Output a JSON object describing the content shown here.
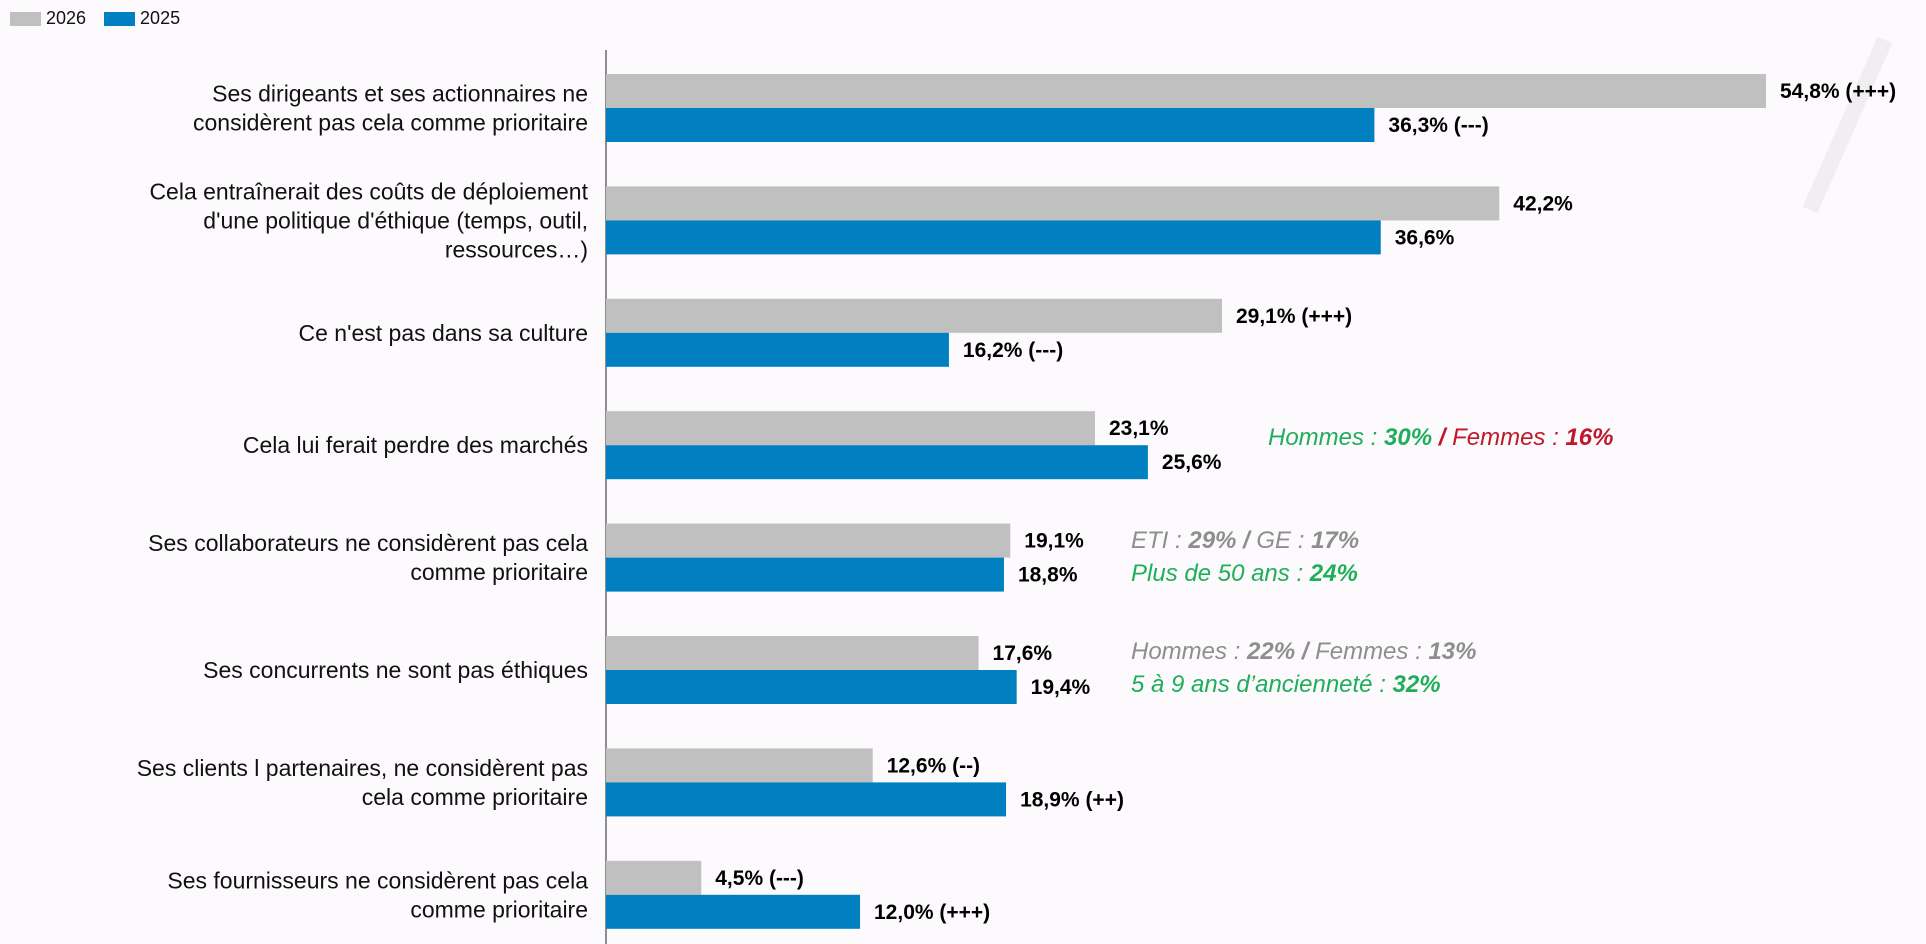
{
  "legend": [
    {
      "label": "2026",
      "color": "#c0c0c0"
    },
    {
      "label": "2025",
      "color": "#0080c0"
    }
  ],
  "chart_data": {
    "type": "bar",
    "orientation": "horizontal",
    "categories": [
      "Ses dirigeants et ses actionnaires ne\nconsidèrent pas cela comme prioritaire",
      "Cela entraînerait des coûts de déploiement\nd'une politique d'éthique (temps, outil,\nressources…)",
      "Ce n'est pas dans sa culture",
      "Cela lui ferait perdre des marchés",
      "Ses collaborateurs ne considèrent pas cela\ncomme prioritaire",
      "Ses concurrents ne sont pas éthiques",
      "Ses clients l partenaires, ne considèrent pas\ncela comme prioritaire",
      "Ses fournisseurs ne considèrent pas cela\ncomme prioritaire"
    ],
    "series": [
      {
        "name": "2026",
        "color": "#c0c0c0",
        "values": [
          54.8,
          42.2,
          29.1,
          23.1,
          19.1,
          17.6,
          12.6,
          4.5
        ],
        "labels": [
          "54,8% (+++)",
          "42,2%",
          "29,1% (+++)",
          "23,1%",
          "19,1%",
          "17,6%",
          "12,6% (--)",
          "4,5% (---)"
        ]
      },
      {
        "name": "2025",
        "color": "#0080c0",
        "values": [
          36.3,
          36.6,
          16.2,
          25.6,
          18.8,
          19.4,
          18.9,
          12.0
        ],
        "labels": [
          "36,3% (---)",
          "36,6%",
          "16,2% (---)",
          "25,6%",
          "18,8%",
          "19,4%",
          "18,9% (++)",
          "12,0% (+++)"
        ]
      }
    ],
    "xlim": [
      0,
      55
    ],
    "grid": false,
    "legend_position": "top-left"
  },
  "annotations": [
    {
      "row": 3,
      "lines": [
        [
          {
            "t": "Hommes : ",
            "c": "#1fae5a",
            "b": false
          },
          {
            "t": "30%",
            "c": "#1fae5a",
            "b": true
          },
          {
            "t": " / ",
            "c": "#c0182b",
            "b": true
          },
          {
            "t": "Femmes : ",
            "c": "#c0182b",
            "b": false
          },
          {
            "t": "16%",
            "c": "#c0182b",
            "b": true
          }
        ]
      ]
    },
    {
      "row": 4,
      "lines": [
        [
          {
            "t": "ETI : ",
            "c": "#8e8e8e",
            "b": false
          },
          {
            "t": "29% / ",
            "c": "#8e8e8e",
            "b": true
          },
          {
            "t": "GE : ",
            "c": "#8e8e8e",
            "b": false
          },
          {
            "t": "17%",
            "c": "#8e8e8e",
            "b": true
          }
        ],
        [
          {
            "t": "Plus de 50 ans : ",
            "c": "#1fae5a",
            "b": false
          },
          {
            "t": "24%",
            "c": "#1fae5a",
            "b": true
          }
        ]
      ]
    },
    {
      "row": 5,
      "lines": [
        [
          {
            "t": "Hommes : ",
            "c": "#8e8e8e",
            "b": false
          },
          {
            "t": "22% / ",
            "c": "#8e8e8e",
            "b": true
          },
          {
            "t": "Femmes : ",
            "c": "#8e8e8e",
            "b": false
          },
          {
            "t": "13%",
            "c": "#8e8e8e",
            "b": true
          }
        ],
        [
          {
            "t": "5 à 9 ans d’ancienneté : ",
            "c": "#1fae5a",
            "b": false
          },
          {
            "t": "32%",
            "c": "#1fae5a",
            "b": true
          }
        ]
      ]
    }
  ]
}
